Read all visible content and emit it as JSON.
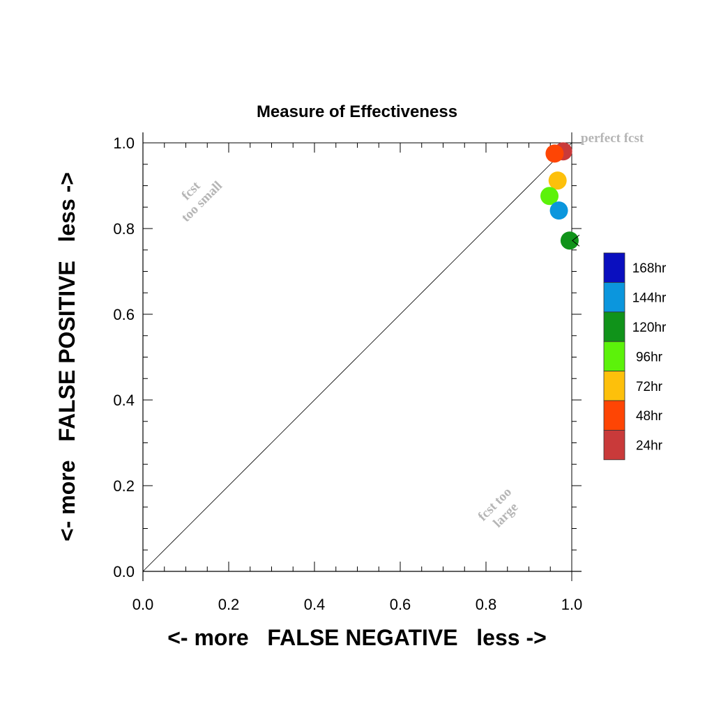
{
  "chart_data": {
    "type": "scatter",
    "title": "Measure of Effectiveness",
    "xlabel": "<- more   FALSE NEGATIVE   less ->",
    "ylabel": "<- more   FALSE POSITIVE   less ->",
    "xlim": [
      0.0,
      1.0
    ],
    "ylim": [
      0.0,
      1.0
    ],
    "x_ticks": [
      "0.0",
      "0.2",
      "0.4",
      "0.6",
      "0.8",
      "1.0"
    ],
    "y_ticks": [
      "0.0",
      "0.2",
      "0.4",
      "0.6",
      "0.8",
      "1.0"
    ],
    "grid": false,
    "diagonal_reference_line": true,
    "annotations": {
      "perfect": "perfect fcst",
      "too_small_1": "fcst",
      "too_small_2": "too small",
      "too_large_1": "fcst too",
      "too_large_2": "large"
    },
    "legend_placement": "right",
    "legend": [
      {
        "label": "168hr",
        "color": "#0a0fbf"
      },
      {
        "label": "144hr",
        "color": "#0b96dd"
      },
      {
        "label": "120hr",
        "color": "#10931a"
      },
      {
        "label": "96hr",
        "color": "#5cf20a"
      },
      {
        "label": "72hr",
        "color": "#fdc00b"
      },
      {
        "label": "48hr",
        "color": "#fe4504"
      },
      {
        "label": "24hr",
        "color": "#c93a3a"
      }
    ],
    "series": [
      {
        "name": "24hr",
        "color": "#c93a3a",
        "x": 0.98,
        "y": 0.98
      },
      {
        "name": "48hr",
        "color": "#fe4504",
        "x": 0.96,
        "y": 0.975
      },
      {
        "name": "72hr",
        "color": "#fdc00b",
        "x": 0.967,
        "y": 0.912
      },
      {
        "name": "96hr",
        "color": "#5cf20a",
        "x": 0.948,
        "y": 0.876
      },
      {
        "name": "144hr",
        "color": "#0b96dd",
        "x": 0.97,
        "y": 0.842
      },
      {
        "name": "120hr",
        "color": "#10931a",
        "x": 0.995,
        "y": 0.772
      }
    ]
  }
}
